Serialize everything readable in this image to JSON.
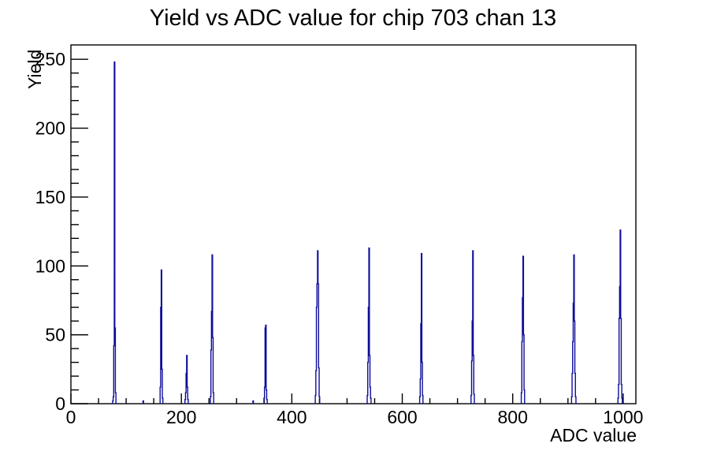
{
  "window": {
    "background": "#ffffff"
  },
  "chart_data": {
    "type": "bar",
    "title": "Yield vs ADC value for chip 703 chan 13",
    "xlabel": "ADC value",
    "ylabel": "Yield",
    "xlim": [
      0,
      1023
    ],
    "ylim": [
      0,
      260.4
    ],
    "x_major_ticks": [
      0,
      200,
      400,
      600,
      800,
      1000
    ],
    "x_minor_step": 50,
    "y_major_ticks": [
      0,
      50,
      100,
      150,
      200,
      250
    ],
    "y_minor_step": 10,
    "grid": false,
    "legend": false,
    "line_color": "#0d0d99",
    "axis_color": "#000000",
    "peaks_summary": [
      {
        "adc": 79,
        "yield": 248
      },
      {
        "adc": 164,
        "yield": 97
      },
      {
        "adc": 210,
        "yield": 35
      },
      {
        "adc": 256,
        "yield": 108
      },
      {
        "adc": 353,
        "yield": 57
      },
      {
        "adc": 447,
        "yield": 111
      },
      {
        "adc": 540,
        "yield": 113
      },
      {
        "adc": 635,
        "yield": 109
      },
      {
        "adc": 728,
        "yield": 111
      },
      {
        "adc": 819,
        "yield": 107
      },
      {
        "adc": 911,
        "yield": 108
      },
      {
        "adc": 995,
        "yield": 126
      }
    ],
    "bins": [
      [
        76,
        2
      ],
      [
        77,
        5
      ],
      [
        78,
        42
      ],
      [
        79,
        248
      ],
      [
        80,
        55
      ],
      [
        81,
        8
      ],
      [
        131,
        2
      ],
      [
        162,
        12
      ],
      [
        163,
        70
      ],
      [
        164,
        97
      ],
      [
        165,
        25
      ],
      [
        166,
        4
      ],
      [
        207,
        3
      ],
      [
        208,
        8
      ],
      [
        209,
        22
      ],
      [
        210,
        35
      ],
      [
        211,
        12
      ],
      [
        212,
        3
      ],
      [
        253,
        5
      ],
      [
        254,
        39
      ],
      [
        255,
        67
      ],
      [
        256,
        108
      ],
      [
        257,
        48
      ],
      [
        258,
        8
      ],
      [
        330,
        2
      ],
      [
        350,
        4
      ],
      [
        351,
        12
      ],
      [
        352,
        55
      ],
      [
        353,
        57
      ],
      [
        354,
        10
      ],
      [
        355,
        3
      ],
      [
        443,
        6
      ],
      [
        444,
        24
      ],
      [
        445,
        70
      ],
      [
        446,
        87
      ],
      [
        447,
        111
      ],
      [
        448,
        87
      ],
      [
        449,
        26
      ],
      [
        450,
        5
      ],
      [
        537,
        6
      ],
      [
        538,
        30
      ],
      [
        539,
        70
      ],
      [
        540,
        113
      ],
      [
        541,
        35
      ],
      [
        542,
        12
      ],
      [
        543,
        4
      ],
      [
        632,
        5
      ],
      [
        633,
        18
      ],
      [
        634,
        58
      ],
      [
        635,
        109
      ],
      [
        636,
        30
      ],
      [
        637,
        6
      ],
      [
        725,
        6
      ],
      [
        726,
        31
      ],
      [
        727,
        60
      ],
      [
        728,
        111
      ],
      [
        729,
        35
      ],
      [
        730,
        7
      ],
      [
        816,
        8
      ],
      [
        817,
        45
      ],
      [
        818,
        77
      ],
      [
        819,
        107
      ],
      [
        820,
        50
      ],
      [
        821,
        10
      ],
      [
        907,
        5
      ],
      [
        908,
        22
      ],
      [
        909,
        45
      ],
      [
        910,
        73
      ],
      [
        911,
        108
      ],
      [
        912,
        60
      ],
      [
        913,
        22
      ],
      [
        914,
        5
      ],
      [
        991,
        4
      ],
      [
        992,
        14
      ],
      [
        993,
        62
      ],
      [
        994,
        85
      ],
      [
        995,
        126
      ],
      [
        996,
        62
      ],
      [
        997,
        14
      ],
      [
        998,
        4
      ]
    ]
  }
}
